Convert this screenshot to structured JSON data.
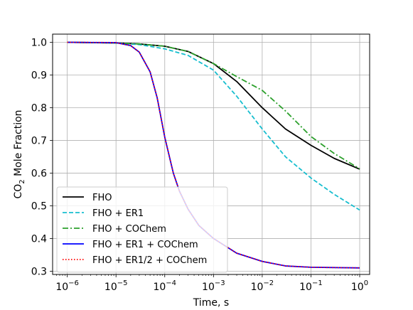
{
  "chart_data": {
    "type": "line",
    "title": "",
    "xlabel": "Time, s",
    "ylabel_parts": [
      "CO",
      "2",
      " Mole Fraction"
    ],
    "xscale": "log",
    "xlim": [
      5e-07,
      1.6
    ],
    "ylim": [
      0.29,
      1.025
    ],
    "grid": true,
    "legend_position": "lower-left",
    "x_ticks": [
      {
        "value": 1e-06,
        "base": "10",
        "exp": "−6"
      },
      {
        "value": 1e-05,
        "base": "10",
        "exp": "−5"
      },
      {
        "value": 0.0001,
        "base": "10",
        "exp": "−4"
      },
      {
        "value": 0.001,
        "base": "10",
        "exp": "−3"
      },
      {
        "value": 0.01,
        "base": "10",
        "exp": "−2"
      },
      {
        "value": 0.1,
        "base": "10",
        "exp": "−1"
      },
      {
        "value": 1,
        "base": "10",
        "exp": "0"
      }
    ],
    "y_ticks": [
      {
        "value": 0.3,
        "label": "0.3"
      },
      {
        "value": 0.4,
        "label": "0.4"
      },
      {
        "value": 0.5,
        "label": "0.5"
      },
      {
        "value": 0.6,
        "label": "0.6"
      },
      {
        "value": 0.7,
        "label": "0.7"
      },
      {
        "value": 0.8,
        "label": "0.8"
      },
      {
        "value": 0.9,
        "label": "0.9"
      },
      {
        "value": 1.0,
        "label": "1.0"
      }
    ],
    "series": [
      {
        "name": "FHO",
        "color": "#000000",
        "dash": "solid",
        "points": [
          [
            1e-06,
            1.0
          ],
          [
            1e-05,
            0.998
          ],
          [
            3e-05,
            0.995
          ],
          [
            0.0001,
            0.988
          ],
          [
            0.0003,
            0.972
          ],
          [
            0.001,
            0.935
          ],
          [
            0.003,
            0.88
          ],
          [
            0.01,
            0.8
          ],
          [
            0.03,
            0.735
          ],
          [
            0.1,
            0.685
          ],
          [
            0.3,
            0.645
          ],
          [
            1,
            0.612
          ]
        ]
      },
      {
        "name": "FHO + ER1",
        "color": "#17becf",
        "dash": "dashed",
        "points": [
          [
            1e-06,
            1.0
          ],
          [
            1e-05,
            0.998
          ],
          [
            3e-05,
            0.993
          ],
          [
            0.0001,
            0.98
          ],
          [
            0.0003,
            0.96
          ],
          [
            0.001,
            0.915
          ],
          [
            0.003,
            0.835
          ],
          [
            0.01,
            0.735
          ],
          [
            0.03,
            0.65
          ],
          [
            0.1,
            0.585
          ],
          [
            0.3,
            0.535
          ],
          [
            1,
            0.487
          ]
        ]
      },
      {
        "name": "FHO + COChem",
        "color": "#2ca02c",
        "dash": "dashdot",
        "points": [
          [
            1e-06,
            1.0
          ],
          [
            1e-05,
            0.998
          ],
          [
            3e-05,
            0.995
          ],
          [
            0.0001,
            0.988
          ],
          [
            0.0003,
            0.972
          ],
          [
            0.001,
            0.935
          ],
          [
            0.003,
            0.895
          ],
          [
            0.01,
            0.853
          ],
          [
            0.03,
            0.79
          ],
          [
            0.1,
            0.712
          ],
          [
            0.3,
            0.66
          ],
          [
            1,
            0.613
          ]
        ]
      },
      {
        "name": "FHO + ER1 + COChem",
        "color": "#0000ff",
        "dash": "solid",
        "points": [
          [
            1e-06,
            1.0
          ],
          [
            1e-05,
            0.999
          ],
          [
            2e-05,
            0.99
          ],
          [
            3e-05,
            0.97
          ],
          [
            5e-05,
            0.91
          ],
          [
            7e-05,
            0.83
          ],
          [
            0.0001,
            0.71
          ],
          [
            0.00015,
            0.6
          ],
          [
            0.0002,
            0.545
          ],
          [
            0.0003,
            0.49
          ],
          [
            0.0005,
            0.44
          ],
          [
            0.001,
            0.4
          ],
          [
            0.003,
            0.355
          ],
          [
            0.01,
            0.33
          ],
          [
            0.03,
            0.316
          ],
          [
            0.1,
            0.312
          ],
          [
            1,
            0.31
          ]
        ]
      },
      {
        "name": "FHO + ER1/2 + COChem",
        "color": "#ff0000",
        "dash": "dotted",
        "points": [
          [
            1e-06,
            1.0
          ],
          [
            1e-05,
            0.999
          ],
          [
            2e-05,
            0.99
          ],
          [
            3e-05,
            0.97
          ],
          [
            5e-05,
            0.91
          ],
          [
            7e-05,
            0.83
          ],
          [
            0.0001,
            0.71
          ],
          [
            0.00015,
            0.6
          ],
          [
            0.0002,
            0.545
          ],
          [
            0.0003,
            0.49
          ],
          [
            0.0005,
            0.44
          ],
          [
            0.001,
            0.4
          ],
          [
            0.003,
            0.355
          ],
          [
            0.01,
            0.33
          ],
          [
            0.03,
            0.316
          ],
          [
            0.1,
            0.312
          ],
          [
            1,
            0.31
          ]
        ]
      }
    ]
  }
}
